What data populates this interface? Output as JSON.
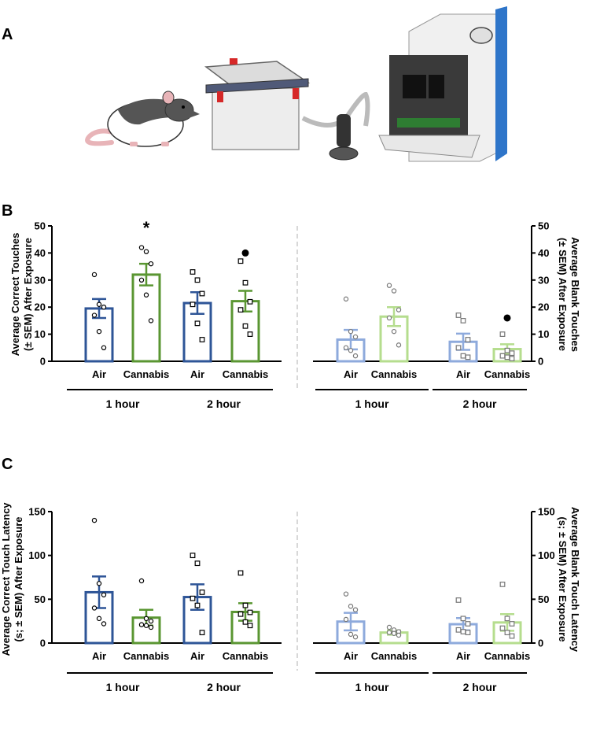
{
  "panel_labels": [
    "A",
    "B",
    "C"
  ],
  "illustration": {
    "items": [
      "rat",
      "chamber",
      "vaporizer",
      "operant-box"
    ]
  },
  "colors": {
    "air_dark": "#2e5597",
    "cannabis_dark": "#5a9632",
    "air_light": "#8eaadc",
    "cannabis_light": "#b5dd8e",
    "axis": "#000000",
    "divider": "#cccccc"
  },
  "chart_data": [
    {
      "panel": "B",
      "type": "bar",
      "left_axis": {
        "label_line1": "Average Correct Touches",
        "label_line2": "(± SEM) After Exposure",
        "ylim": [
          0,
          50
        ],
        "ticks": [
          "0",
          "10",
          "20",
          "30",
          "40",
          "50"
        ]
      },
      "right_axis": {
        "label_line1": "Average Blank Touches",
        "label_line2": "(± SEM) After Exposure",
        "ylim": [
          0,
          50
        ],
        "ticks": [
          "0",
          "10",
          "20",
          "30",
          "40",
          "50"
        ]
      },
      "groups": [
        "1 hour",
        "2 hour",
        "1 hour",
        "2 hour"
      ],
      "bars": [
        {
          "category": "Air",
          "group": "1 hour",
          "side": "left",
          "shade": "dark",
          "treatment": "air",
          "mean": 19.5,
          "sem": 3.5,
          "points": [
            32,
            21,
            20,
            17,
            11,
            5
          ],
          "marker": "circle"
        },
        {
          "category": "Cannabis",
          "group": "1 hour",
          "side": "left",
          "shade": "dark",
          "treatment": "cannabis",
          "mean": 32,
          "sem": 4,
          "points": [
            42,
            40.5,
            36,
            30,
            24.5,
            15
          ],
          "marker": "circle",
          "annotation": "*"
        },
        {
          "category": "Air",
          "group": "2 hour",
          "side": "left",
          "shade": "dark",
          "treatment": "air",
          "mean": 21.5,
          "sem": 4,
          "points": [
            33,
            30,
            25,
            21,
            14,
            8
          ],
          "marker": "square"
        },
        {
          "category": "Cannabis",
          "group": "2 hour",
          "side": "left",
          "shade": "dark",
          "treatment": "cannabis",
          "mean": 22.2,
          "sem": 3.8,
          "points": [
            37,
            29,
            22,
            19,
            13,
            10
          ],
          "marker": "square",
          "outlier": 40
        },
        {
          "category": "Air",
          "group": "1 hour",
          "side": "right",
          "shade": "light",
          "treatment": "air",
          "mean": 8,
          "sem": 3.6,
          "points": [
            23,
            11,
            9,
            5,
            4,
            2
          ],
          "marker": "circle"
        },
        {
          "category": "Cannabis",
          "group": "1 hour",
          "side": "right",
          "shade": "light",
          "treatment": "cannabis",
          "mean": 16.5,
          "sem": 3.5,
          "points": [
            28,
            26,
            19,
            16,
            11,
            6
          ],
          "marker": "circle"
        },
        {
          "category": "Air",
          "group": "2 hour",
          "side": "right",
          "shade": "light",
          "treatment": "air",
          "mean": 7.2,
          "sem": 3,
          "points": [
            17,
            15,
            8,
            5,
            2,
            1.5
          ],
          "marker": "square"
        },
        {
          "category": "Cannabis",
          "group": "2 hour",
          "side": "right",
          "shade": "light",
          "treatment": "cannabis",
          "mean": 4.5,
          "sem": 1.8,
          "points": [
            10,
            4,
            3,
            2,
            1.5,
            1
          ],
          "marker": "square",
          "outlier": 16
        }
      ]
    },
    {
      "panel": "C",
      "type": "bar",
      "left_axis": {
        "label_line1": "Average Correct Touch Latency",
        "label_line2": "(s; ± SEM) After Exposure",
        "ylim": [
          0,
          150
        ],
        "ticks": [
          "0",
          "50",
          "100",
          "150"
        ]
      },
      "right_axis": {
        "label_line1": "Average Blank Touch Latency",
        "label_line2": "(s; ± SEM) After Exposure",
        "ylim": [
          0,
          150
        ],
        "ticks": [
          "0",
          "50",
          "100",
          "150"
        ]
      },
      "groups": [
        "1 hour",
        "2 hour",
        "1 hour",
        "2 hour"
      ],
      "bars": [
        {
          "category": "Air",
          "group": "1 hour",
          "side": "left",
          "shade": "dark",
          "treatment": "air",
          "mean": 58,
          "sem": 18,
          "points": [
            140,
            68,
            55,
            40,
            28,
            22
          ],
          "marker": "circle"
        },
        {
          "category": "Cannabis",
          "group": "1 hour",
          "side": "left",
          "shade": "dark",
          "treatment": "cannabis",
          "mean": 29,
          "sem": 9,
          "points": [
            71,
            28,
            25,
            21,
            20,
            18
          ],
          "marker": "circle"
        },
        {
          "category": "Air",
          "group": "2 hour",
          "side": "left",
          "shade": "dark",
          "treatment": "air",
          "mean": 52.5,
          "sem": 14.5,
          "points": [
            100,
            91,
            58,
            51,
            43,
            12
          ],
          "marker": "square"
        },
        {
          "category": "Cannabis",
          "group": "2 hour",
          "side": "left",
          "shade": "dark",
          "treatment": "cannabis",
          "mean": 35.5,
          "sem": 10,
          "points": [
            80,
            43,
            35,
            33,
            24,
            20
          ],
          "marker": "square"
        },
        {
          "category": "Air",
          "group": "1 hour",
          "side": "right",
          "shade": "light",
          "treatment": "air",
          "mean": 24.5,
          "sem": 10,
          "points": [
            56,
            42,
            38,
            27,
            10,
            7
          ],
          "marker": "circle"
        },
        {
          "category": "Cannabis",
          "group": "1 hour",
          "side": "right",
          "shade": "light",
          "treatment": "cannabis",
          "mean": 12,
          "sem": 2.5,
          "points": [
            18,
            15,
            13,
            12,
            11,
            9
          ],
          "marker": "circle"
        },
        {
          "category": "Air",
          "group": "2 hour",
          "side": "right",
          "shade": "light",
          "treatment": "air",
          "mean": 21.5,
          "sem": 7,
          "points": [
            49,
            28,
            22,
            15,
            13,
            12
          ],
          "marker": "square"
        },
        {
          "category": "Cannabis",
          "group": "2 hour",
          "side": "right",
          "shade": "light",
          "treatment": "cannabis",
          "mean": 23.5,
          "sem": 9.5,
          "points": [
            67,
            28,
            22,
            17,
            12,
            8
          ],
          "marker": "square"
        }
      ]
    }
  ]
}
